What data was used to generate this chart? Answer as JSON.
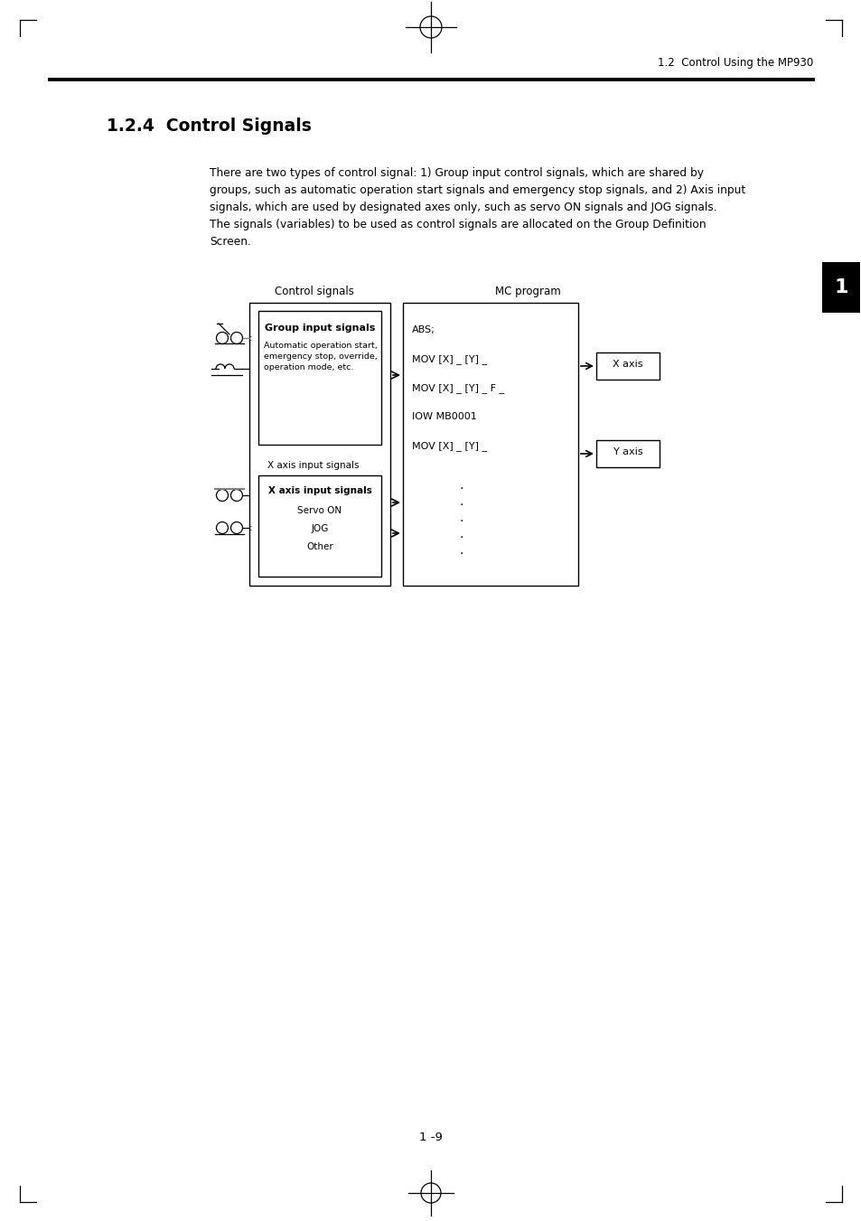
{
  "page_title": "1.2  Control Using the MP930",
  "section_title": "1.2.4  Control Signals",
  "body_text_lines": [
    "There are two types of control signal: 1) Group input control signals, which are shared by",
    "groups, such as automatic operation start signals and emergency stop signals, and 2) Axis input",
    "signals, which are used by designated axes only, such as servo ON signals and JOG signals.",
    "The signals (variables) to be used as control signals are allocated on the Group Definition",
    "Screen."
  ],
  "diagram_label_left": "Control signals",
  "diagram_label_right": "MC program",
  "group_box_title": "Group input signals",
  "group_box_text": "Automatic operation start,\nemergency stop, override,\noperation mode, etc.",
  "axis_outer_label": "X axis input signals",
  "axis_box_title": "X axis input signals",
  "axis_box_text_lines": [
    "Servo ON",
    "JOG",
    "Other"
  ],
  "mc_lines": [
    "ABS;",
    "MOV [X] _ [Y] _",
    "MOV [X] _ [Y] _ F _",
    "IOW MB0001",
    "MOV [X] _ [Y] _"
  ],
  "x_axis_label": "X axis",
  "y_axis_label": "Y axis",
  "page_number": "1 -9",
  "tab_number": "1",
  "bg_color": "#ffffff",
  "text_color": "#000000"
}
